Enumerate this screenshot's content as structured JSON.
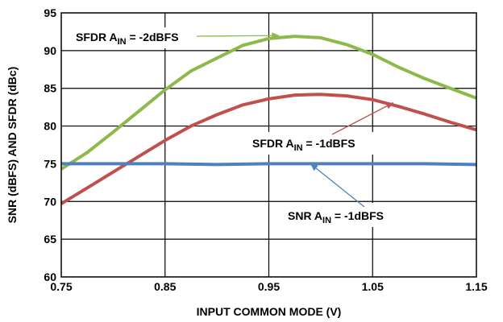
{
  "chart_data": {
    "type": "line",
    "title": "",
    "xlabel": "INPUT COMMON MODE (V)",
    "ylabel": "SNR (dBFS) AND SFDR (dBc)",
    "xlim": [
      0.75,
      1.15
    ],
    "ylim": [
      60,
      95
    ],
    "grid": true,
    "x_ticks": [
      "0.75",
      "0.85",
      "0.95",
      "1.05",
      "1.15"
    ],
    "y_ticks": [
      "60",
      "65",
      "70",
      "75",
      "80",
      "85",
      "90",
      "95"
    ],
    "x_tick_values": [
      0.75,
      0.85,
      0.95,
      1.05,
      1.15
    ],
    "y_tick_values": [
      60,
      65,
      70,
      75,
      80,
      85,
      90,
      95
    ],
    "series": [
      {
        "name": "SFDR AIN = -2dBFS",
        "color": "#8DB84A",
        "x": [
          0.75,
          0.775,
          0.8,
          0.825,
          0.85,
          0.875,
          0.9,
          0.925,
          0.95,
          0.975,
          1.0,
          1.025,
          1.05,
          1.075,
          1.1,
          1.125,
          1.15
        ],
        "y": [
          74.3,
          76.5,
          79.2,
          82.0,
          84.8,
          87.3,
          89.0,
          90.7,
          91.6,
          91.9,
          91.7,
          90.8,
          89.5,
          87.8,
          86.3,
          85.0,
          83.7
        ]
      },
      {
        "name": "SFDR AIN = -1dBFS",
        "color": "#C0504D",
        "x": [
          0.75,
          0.775,
          0.8,
          0.825,
          0.85,
          0.875,
          0.9,
          0.925,
          0.95,
          0.975,
          1.0,
          1.025,
          1.05,
          1.075,
          1.1,
          1.125,
          1.15
        ],
        "y": [
          69.7,
          71.8,
          73.9,
          76.0,
          78.1,
          80.0,
          81.5,
          82.8,
          83.6,
          84.1,
          84.2,
          84.0,
          83.5,
          82.6,
          81.6,
          80.5,
          79.5
        ]
      },
      {
        "name": "SNR AIN = -1dBFS",
        "color": "#4F81BD",
        "x": [
          0.75,
          0.8,
          0.85,
          0.9,
          0.95,
          1.0,
          1.05,
          1.1,
          1.15
        ],
        "y": [
          75.0,
          75.0,
          75.0,
          74.9,
          75.0,
          75.0,
          75.0,
          75.0,
          74.9
        ]
      }
    ],
    "annotations": [
      {
        "series": 0,
        "label_main": "SFDR A",
        "label_sub": "IN",
        "label_tail": " = -2dBFS",
        "line_color": "#8DB84A",
        "point": [
          0.96,
          92.0
        ]
      },
      {
        "series": 1,
        "label_main": "SFDR A",
        "label_sub": "IN",
        "label_tail": " = -1dBFS",
        "line_color": "#C0504D",
        "point": [
          1.07,
          83.1
        ]
      },
      {
        "series": 2,
        "label_main": "SNR A",
        "label_sub": "IN",
        "label_tail": " = -1dBFS",
        "line_color": "#4F81BD",
        "point": [
          0.99,
          75.0
        ]
      }
    ]
  }
}
